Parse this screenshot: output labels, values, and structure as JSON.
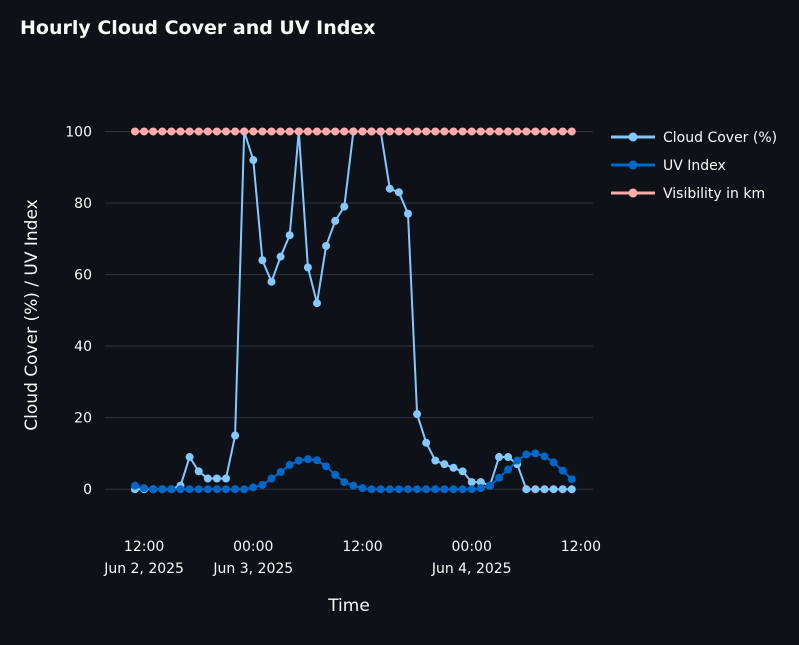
{
  "chart_data": {
    "type": "line",
    "title": "Hourly Cloud Cover and UV Index",
    "xlabel": "Time",
    "ylabel": "Cloud Cover (%) / UV Index",
    "ylim": [
      -10,
      106
    ],
    "y_ticks": [
      0,
      20,
      40,
      60,
      80,
      100
    ],
    "grid": true,
    "legend_position": "top-right",
    "x_start": "2025-06-02T11:00",
    "x_step_hours": 1,
    "x_ticks": [
      {
        "hour": 1,
        "label": "12:00",
        "sublabel": "Jun 2, 2025"
      },
      {
        "hour": 13,
        "label": "00:00",
        "sublabel": "Jun 3, 2025"
      },
      {
        "hour": 25,
        "label": "12:00",
        "sublabel": ""
      },
      {
        "hour": 37,
        "label": "00:00",
        "sublabel": "Jun 4, 2025"
      },
      {
        "hour": 49,
        "label": "12:00",
        "sublabel": ""
      }
    ],
    "series": [
      {
        "name": "Cloud Cover (%)",
        "color": "#83c9ff",
        "values": [
          0,
          0,
          0,
          0,
          0,
          1,
          9,
          5,
          3,
          3,
          3,
          15,
          100,
          92,
          64,
          58,
          65,
          71,
          100,
          62,
          52,
          68,
          75,
          79,
          100,
          100,
          100,
          100,
          84,
          83,
          77,
          21,
          13,
          8,
          7,
          6,
          5,
          2,
          2,
          1,
          9,
          9,
          7,
          0,
          0,
          0,
          0,
          0,
          0
        ]
      },
      {
        "name": "UV Index",
        "color": "#0068c9",
        "values": [
          1,
          0.3,
          0,
          0,
          0,
          0,
          0,
          0,
          0,
          0,
          0,
          0,
          0,
          0.5,
          1.2,
          3,
          4.8,
          6.8,
          8,
          8.4,
          8.1,
          6.4,
          4,
          2,
          1,
          0.3,
          0,
          0,
          0,
          0,
          0,
          0,
          0,
          0,
          0,
          0,
          0,
          0,
          0.3,
          1,
          3.2,
          5.5,
          8,
          9.7,
          10,
          9.2,
          7.5,
          5.2,
          2.8
        ]
      },
      {
        "name": "Visibility in km",
        "color": "#ffabab",
        "values": [
          100,
          100,
          100,
          100,
          100,
          100,
          100,
          100,
          100,
          100,
          100,
          100,
          100,
          100,
          100,
          100,
          100,
          100,
          100,
          100,
          100,
          100,
          100,
          100,
          100,
          100,
          100,
          100,
          100,
          100,
          100,
          100,
          100,
          100,
          100,
          100,
          100,
          100,
          100,
          100,
          100,
          100,
          100,
          100,
          100,
          100,
          100,
          100,
          100
        ]
      }
    ]
  }
}
